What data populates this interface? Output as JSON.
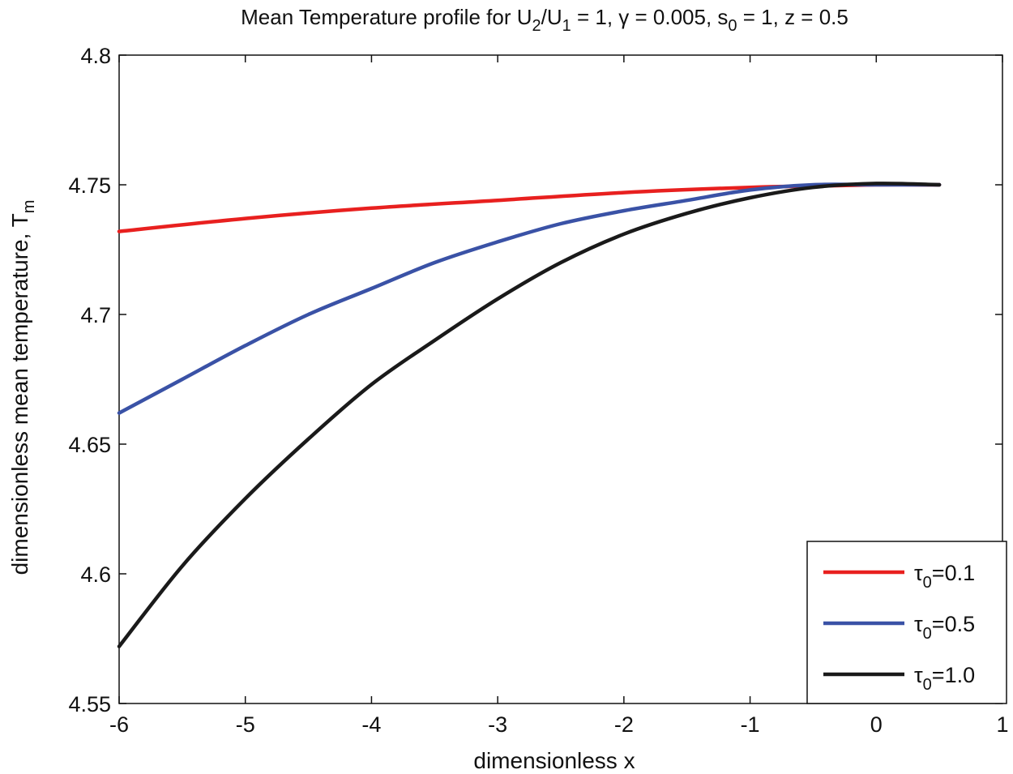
{
  "chart_data": {
    "type": "line",
    "title": {
      "prefix": "Mean Temperature profile for U",
      "sub1": "2",
      "mid1": "/U",
      "sub2": "1",
      "mid2": " = 1,  γ = 0.005, s",
      "sub3": "0",
      "suffix": " = 1, z = 0.5"
    },
    "xlabel": "dimensionless x",
    "ylabel": {
      "main": "dimensionless mean temperature,  T",
      "sub": "m"
    },
    "xlim": [
      -6,
      1
    ],
    "ylim": [
      4.55,
      4.8
    ],
    "xticks": [
      -6,
      -5,
      -4,
      -3,
      -2,
      -1,
      0,
      1
    ],
    "xtick_labels": [
      "-6",
      "-5",
      "-4",
      "-3",
      "-2",
      "-1",
      "0",
      "1"
    ],
    "yticks": [
      4.55,
      4.6,
      4.65,
      4.7,
      4.75,
      4.8
    ],
    "ytick_labels": [
      "4.55",
      "4.6",
      "4.65",
      "4.7",
      "4.75",
      "4.8"
    ],
    "legend_position": "bottom-right",
    "series": [
      {
        "name": "τ₀=0.1",
        "label_main": "τ",
        "label_sub": "0",
        "label_value": "=0.1",
        "color": "#e8201f",
        "x": [
          -6,
          -5,
          -4,
          -3,
          -2,
          -1,
          -0.5,
          0,
          0.5
        ],
        "y": [
          4.732,
          4.737,
          4.741,
          4.744,
          4.747,
          4.749,
          4.7495,
          4.75,
          4.75
        ]
      },
      {
        "name": "τ₀=0.5",
        "label_main": "τ",
        "label_sub": "0",
        "label_value": "=0.5",
        "color": "#3a52a6",
        "x": [
          -6,
          -5.5,
          -5,
          -4.5,
          -4,
          -3.5,
          -3,
          -2.5,
          -2,
          -1.5,
          -1,
          -0.5,
          0,
          0.5
        ],
        "y": [
          4.662,
          4.675,
          4.688,
          4.7,
          4.71,
          4.72,
          4.728,
          4.735,
          4.74,
          4.744,
          4.748,
          4.75,
          4.75,
          4.75
        ]
      },
      {
        "name": "τ₀=1.0",
        "label_main": "τ",
        "label_sub": "0",
        "label_value": "=1.0",
        "color": "#1a1a1a",
        "x": [
          -6,
          -5.5,
          -5,
          -4.5,
          -4,
          -3.5,
          -3,
          -2.5,
          -2,
          -1.5,
          -1,
          -0.5,
          0,
          0.5
        ],
        "y": [
          4.572,
          4.603,
          4.629,
          4.652,
          4.673,
          4.69,
          4.706,
          4.72,
          4.731,
          4.739,
          4.745,
          4.749,
          4.7505,
          4.75
        ]
      }
    ]
  }
}
